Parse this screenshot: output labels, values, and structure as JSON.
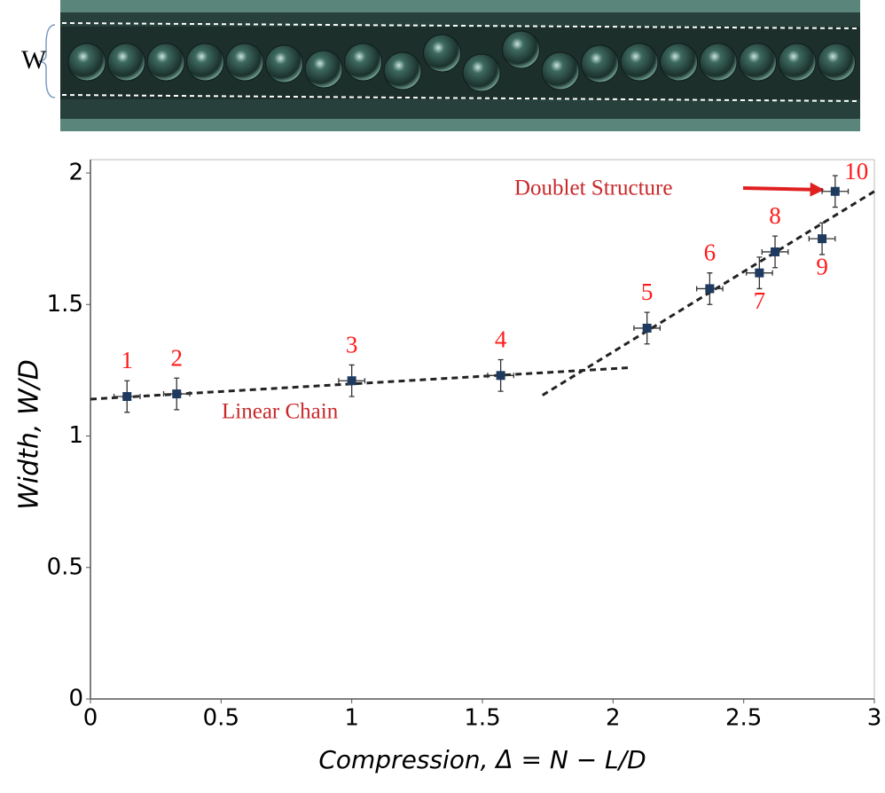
{
  "image_label": "W",
  "chart_data": {
    "type": "scatter",
    "x": [
      0.14,
      0.33,
      1.0,
      1.57,
      2.13,
      2.37,
      2.56,
      2.62,
      2.8,
      2.85
    ],
    "y": [
      1.15,
      1.16,
      1.21,
      1.23,
      1.41,
      1.56,
      1.62,
      1.7,
      1.75,
      1.93
    ],
    "x_errors": [
      0.05,
      0.05,
      0.05,
      0.05,
      0.05,
      0.05,
      0.05,
      0.05,
      0.05,
      0.05
    ],
    "y_errors": [
      0.06,
      0.06,
      0.06,
      0.06,
      0.06,
      0.06,
      0.06,
      0.06,
      0.06,
      0.06
    ],
    "point_labels": [
      "1",
      "2",
      "3",
      "4",
      "5",
      "6",
      "7",
      "8",
      "9",
      "10"
    ],
    "color": "#1f3a5f",
    "fit_lines": [
      {
        "x": [
          0,
          2.07
        ],
        "y": [
          1.14,
          1.26
        ]
      },
      {
        "x": [
          1.73,
          3
        ],
        "y": [
          1.155,
          1.93
        ]
      }
    ],
    "annotations": [
      "Linear Chain",
      "Doublet Structure"
    ],
    "xlabel": "Compression,  Δ = N − L/D",
    "ylabel": "Width,  W/D",
    "xlim": [
      0,
      3
    ],
    "ylim": [
      0,
      2
    ],
    "xticks": [
      0,
      0.5,
      1,
      1.5,
      2,
      2.5,
      3
    ],
    "yticks": [
      0,
      0.5,
      1,
      1.5,
      2
    ]
  }
}
